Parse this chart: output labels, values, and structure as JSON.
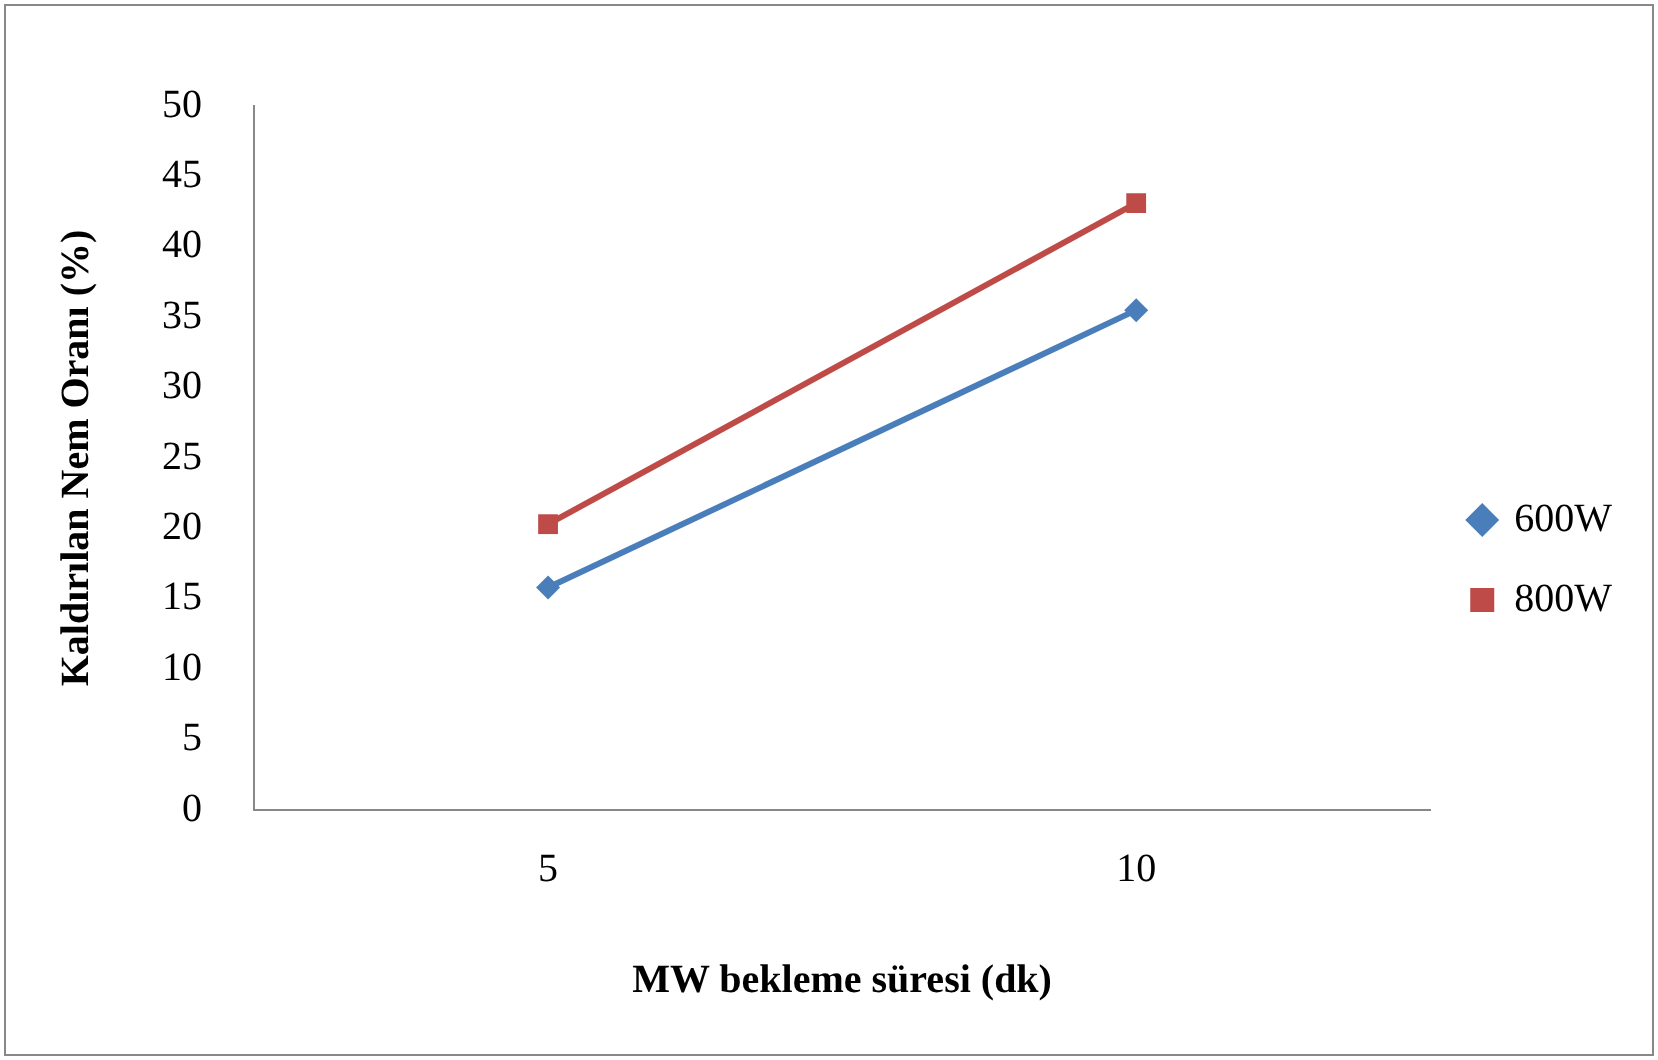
{
  "chart_data": {
    "type": "line",
    "xlabel": "MW bekleme süresi (dk)",
    "ylabel": "Kaldırılan Nem Oranı (%)",
    "categories": [
      "5",
      "10"
    ],
    "series": [
      {
        "name": "600W",
        "color": "#4a7ebb",
        "marker": "diamond",
        "values": [
          15.8,
          35.5
        ]
      },
      {
        "name": "800W",
        "color": "#be4b48",
        "marker": "square",
        "values": [
          20.3,
          43.1
        ]
      }
    ],
    "ylim": [
      0,
      50
    ],
    "yticks": [
      0,
      5,
      10,
      15,
      20,
      25,
      30,
      35,
      40,
      45,
      50
    ],
    "grid": false,
    "legend": "right"
  }
}
